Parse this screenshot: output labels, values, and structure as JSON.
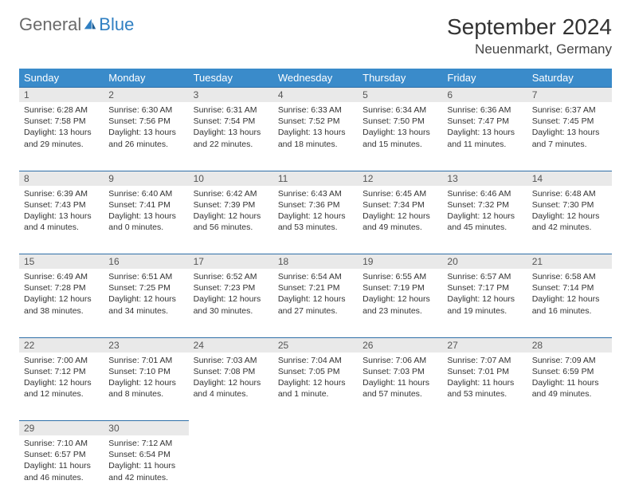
{
  "logo": {
    "part1": "General",
    "part2": "Blue"
  },
  "title": "September 2024",
  "location": "Neuenmarkt, Germany",
  "colors": {
    "header_bg": "#3a8bca",
    "header_text": "#ffffff",
    "daynum_bg": "#e9e9e9",
    "daynum_border": "#2f6fa8",
    "body_text": "#333333",
    "logo_gray": "#6a6a6a",
    "logo_blue": "#2f7fc2"
  },
  "fonts": {
    "title_pt": 28,
    "location_pt": 17,
    "dow_pt": 13,
    "daynum_pt": 12,
    "cell_pt": 10.5
  },
  "dow": [
    "Sunday",
    "Monday",
    "Tuesday",
    "Wednesday",
    "Thursday",
    "Friday",
    "Saturday"
  ],
  "weeks": [
    [
      {
        "n": "1",
        "sr": "Sunrise: 6:28 AM",
        "ss": "Sunset: 7:58 PM",
        "dl": "Daylight: 13 hours and 29 minutes."
      },
      {
        "n": "2",
        "sr": "Sunrise: 6:30 AM",
        "ss": "Sunset: 7:56 PM",
        "dl": "Daylight: 13 hours and 26 minutes."
      },
      {
        "n": "3",
        "sr": "Sunrise: 6:31 AM",
        "ss": "Sunset: 7:54 PM",
        "dl": "Daylight: 13 hours and 22 minutes."
      },
      {
        "n": "4",
        "sr": "Sunrise: 6:33 AM",
        "ss": "Sunset: 7:52 PM",
        "dl": "Daylight: 13 hours and 18 minutes."
      },
      {
        "n": "5",
        "sr": "Sunrise: 6:34 AM",
        "ss": "Sunset: 7:50 PM",
        "dl": "Daylight: 13 hours and 15 minutes."
      },
      {
        "n": "6",
        "sr": "Sunrise: 6:36 AM",
        "ss": "Sunset: 7:47 PM",
        "dl": "Daylight: 13 hours and 11 minutes."
      },
      {
        "n": "7",
        "sr": "Sunrise: 6:37 AM",
        "ss": "Sunset: 7:45 PM",
        "dl": "Daylight: 13 hours and 7 minutes."
      }
    ],
    [
      {
        "n": "8",
        "sr": "Sunrise: 6:39 AM",
        "ss": "Sunset: 7:43 PM",
        "dl": "Daylight: 13 hours and 4 minutes."
      },
      {
        "n": "9",
        "sr": "Sunrise: 6:40 AM",
        "ss": "Sunset: 7:41 PM",
        "dl": "Daylight: 13 hours and 0 minutes."
      },
      {
        "n": "10",
        "sr": "Sunrise: 6:42 AM",
        "ss": "Sunset: 7:39 PM",
        "dl": "Daylight: 12 hours and 56 minutes."
      },
      {
        "n": "11",
        "sr": "Sunrise: 6:43 AM",
        "ss": "Sunset: 7:36 PM",
        "dl": "Daylight: 12 hours and 53 minutes."
      },
      {
        "n": "12",
        "sr": "Sunrise: 6:45 AM",
        "ss": "Sunset: 7:34 PM",
        "dl": "Daylight: 12 hours and 49 minutes."
      },
      {
        "n": "13",
        "sr": "Sunrise: 6:46 AM",
        "ss": "Sunset: 7:32 PM",
        "dl": "Daylight: 12 hours and 45 minutes."
      },
      {
        "n": "14",
        "sr": "Sunrise: 6:48 AM",
        "ss": "Sunset: 7:30 PM",
        "dl": "Daylight: 12 hours and 42 minutes."
      }
    ],
    [
      {
        "n": "15",
        "sr": "Sunrise: 6:49 AM",
        "ss": "Sunset: 7:28 PM",
        "dl": "Daylight: 12 hours and 38 minutes."
      },
      {
        "n": "16",
        "sr": "Sunrise: 6:51 AM",
        "ss": "Sunset: 7:25 PM",
        "dl": "Daylight: 12 hours and 34 minutes."
      },
      {
        "n": "17",
        "sr": "Sunrise: 6:52 AM",
        "ss": "Sunset: 7:23 PM",
        "dl": "Daylight: 12 hours and 30 minutes."
      },
      {
        "n": "18",
        "sr": "Sunrise: 6:54 AM",
        "ss": "Sunset: 7:21 PM",
        "dl": "Daylight: 12 hours and 27 minutes."
      },
      {
        "n": "19",
        "sr": "Sunrise: 6:55 AM",
        "ss": "Sunset: 7:19 PM",
        "dl": "Daylight: 12 hours and 23 minutes."
      },
      {
        "n": "20",
        "sr": "Sunrise: 6:57 AM",
        "ss": "Sunset: 7:17 PM",
        "dl": "Daylight: 12 hours and 19 minutes."
      },
      {
        "n": "21",
        "sr": "Sunrise: 6:58 AM",
        "ss": "Sunset: 7:14 PM",
        "dl": "Daylight: 12 hours and 16 minutes."
      }
    ],
    [
      {
        "n": "22",
        "sr": "Sunrise: 7:00 AM",
        "ss": "Sunset: 7:12 PM",
        "dl": "Daylight: 12 hours and 12 minutes."
      },
      {
        "n": "23",
        "sr": "Sunrise: 7:01 AM",
        "ss": "Sunset: 7:10 PM",
        "dl": "Daylight: 12 hours and 8 minutes."
      },
      {
        "n": "24",
        "sr": "Sunrise: 7:03 AM",
        "ss": "Sunset: 7:08 PM",
        "dl": "Daylight: 12 hours and 4 minutes."
      },
      {
        "n": "25",
        "sr": "Sunrise: 7:04 AM",
        "ss": "Sunset: 7:05 PM",
        "dl": "Daylight: 12 hours and 1 minute."
      },
      {
        "n": "26",
        "sr": "Sunrise: 7:06 AM",
        "ss": "Sunset: 7:03 PM",
        "dl": "Daylight: 11 hours and 57 minutes."
      },
      {
        "n": "27",
        "sr": "Sunrise: 7:07 AM",
        "ss": "Sunset: 7:01 PM",
        "dl": "Daylight: 11 hours and 53 minutes."
      },
      {
        "n": "28",
        "sr": "Sunrise: 7:09 AM",
        "ss": "Sunset: 6:59 PM",
        "dl": "Daylight: 11 hours and 49 minutes."
      }
    ],
    [
      {
        "n": "29",
        "sr": "Sunrise: 7:10 AM",
        "ss": "Sunset: 6:57 PM",
        "dl": "Daylight: 11 hours and 46 minutes."
      },
      {
        "n": "30",
        "sr": "Sunrise: 7:12 AM",
        "ss": "Sunset: 6:54 PM",
        "dl": "Daylight: 11 hours and 42 minutes."
      },
      null,
      null,
      null,
      null,
      null
    ]
  ]
}
